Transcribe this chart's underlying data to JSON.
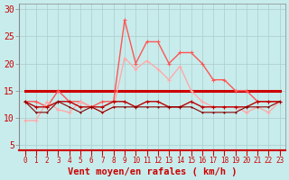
{
  "xlabel": "Vent moyen/en rafales ( km/h )",
  "bg_color": "#c8ecec",
  "grid_color": "#aacccc",
  "xlim": [
    -0.5,
    23.5
  ],
  "ylim": [
    4,
    31
  ],
  "yticks": [
    5,
    10,
    15,
    20,
    25,
    30
  ],
  "xticks": [
    0,
    1,
    2,
    3,
    4,
    5,
    6,
    7,
    8,
    9,
    10,
    11,
    12,
    13,
    14,
    15,
    16,
    17,
    18,
    19,
    20,
    21,
    22,
    23
  ],
  "x": [
    0,
    1,
    2,
    3,
    4,
    5,
    6,
    7,
    8,
    9,
    10,
    11,
    12,
    13,
    14,
    15,
    16,
    17,
    18,
    19,
    20,
    21,
    22,
    23
  ],
  "series": [
    {
      "y": [
        15,
        15,
        15,
        15,
        15,
        15,
        15,
        15,
        15,
        15,
        15,
        15,
        15,
        15,
        15,
        15,
        15,
        15,
        15,
        15,
        15,
        15,
        15,
        15
      ],
      "color": "#cc0000",
      "lw": 2.2,
      "marker": null,
      "ms": 0
    },
    {
      "y": [
        13,
        13,
        12,
        15,
        13,
        13,
        12,
        13,
        13,
        28,
        20,
        24,
        24,
        20,
        22,
        22,
        20,
        17,
        17,
        15,
        15,
        13,
        13,
        13
      ],
      "color": "#ff5555",
      "lw": 1.0,
      "marker": "+",
      "ms": 3
    },
    {
      "y": [
        9.5,
        9.5,
        13,
        11.5,
        11,
        13,
        12,
        11,
        12,
        21,
        19,
        20.5,
        19,
        17,
        19.5,
        15,
        13,
        12,
        12,
        12,
        11,
        12,
        11,
        13
      ],
      "color": "#ffaaaa",
      "lw": 1.0,
      "marker": "+",
      "ms": 3
    },
    {
      "y": [
        13,
        12,
        12,
        13,
        13,
        12,
        12,
        12,
        13,
        13,
        12,
        13,
        13,
        12,
        12,
        13,
        12,
        12,
        12,
        12,
        12,
        13,
        13,
        13
      ],
      "color": "#bb0000",
      "lw": 1.0,
      "marker": "+",
      "ms": 2.5
    },
    {
      "y": [
        13,
        11,
        11,
        13,
        12,
        11,
        12,
        11,
        12,
        12,
        12,
        12,
        12,
        12,
        12,
        12,
        11,
        11,
        11,
        11,
        12,
        12,
        12,
        13
      ],
      "color": "#880000",
      "lw": 0.8,
      "marker": "+",
      "ms": 2
    }
  ],
  "xlabel_color": "#cc0000",
  "xlabel_fontsize": 7.5,
  "ytick_fontsize": 7,
  "xtick_fontsize": 5.5
}
